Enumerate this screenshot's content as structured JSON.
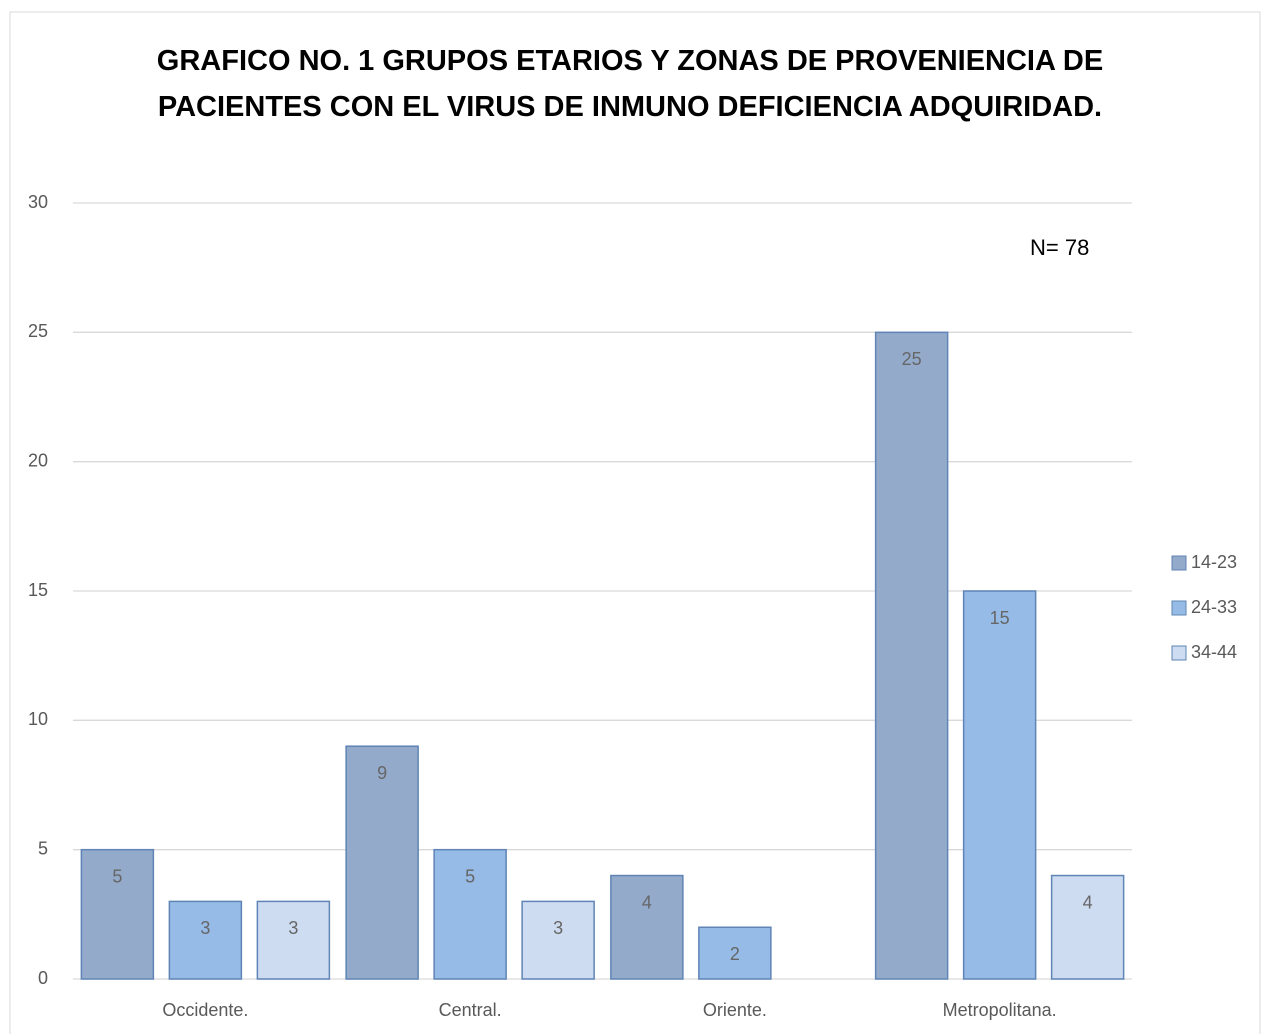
{
  "chart_data": {
    "type": "bar",
    "title": "GRAFICO NO. 1 GRUPOS ETARIOS Y ZONAS DE PROVENIENCIA DE PACIENTES CON EL VIRUS DE INMUNO DEFICIENCIA ADQUIRIDAD.",
    "annotation": "N= 78",
    "categories": [
      "Occidente.",
      "Central.",
      "Oriente.",
      "Metropolitana."
    ],
    "series": [
      {
        "name": "14-23",
        "color": "#93aacb",
        "values": [
          5,
          9,
          4,
          25
        ]
      },
      {
        "name": "24-33",
        "color": "#95bbe6",
        "values": [
          3,
          5,
          2,
          15
        ]
      },
      {
        "name": "34-44",
        "color": "#cddcf0",
        "values": [
          3,
          3,
          null,
          4
        ]
      }
    ],
    "ylim": [
      0,
      30
    ],
    "yticks": [
      0,
      5,
      10,
      15,
      20,
      25,
      30
    ],
    "grid": true,
    "legend": "right"
  }
}
